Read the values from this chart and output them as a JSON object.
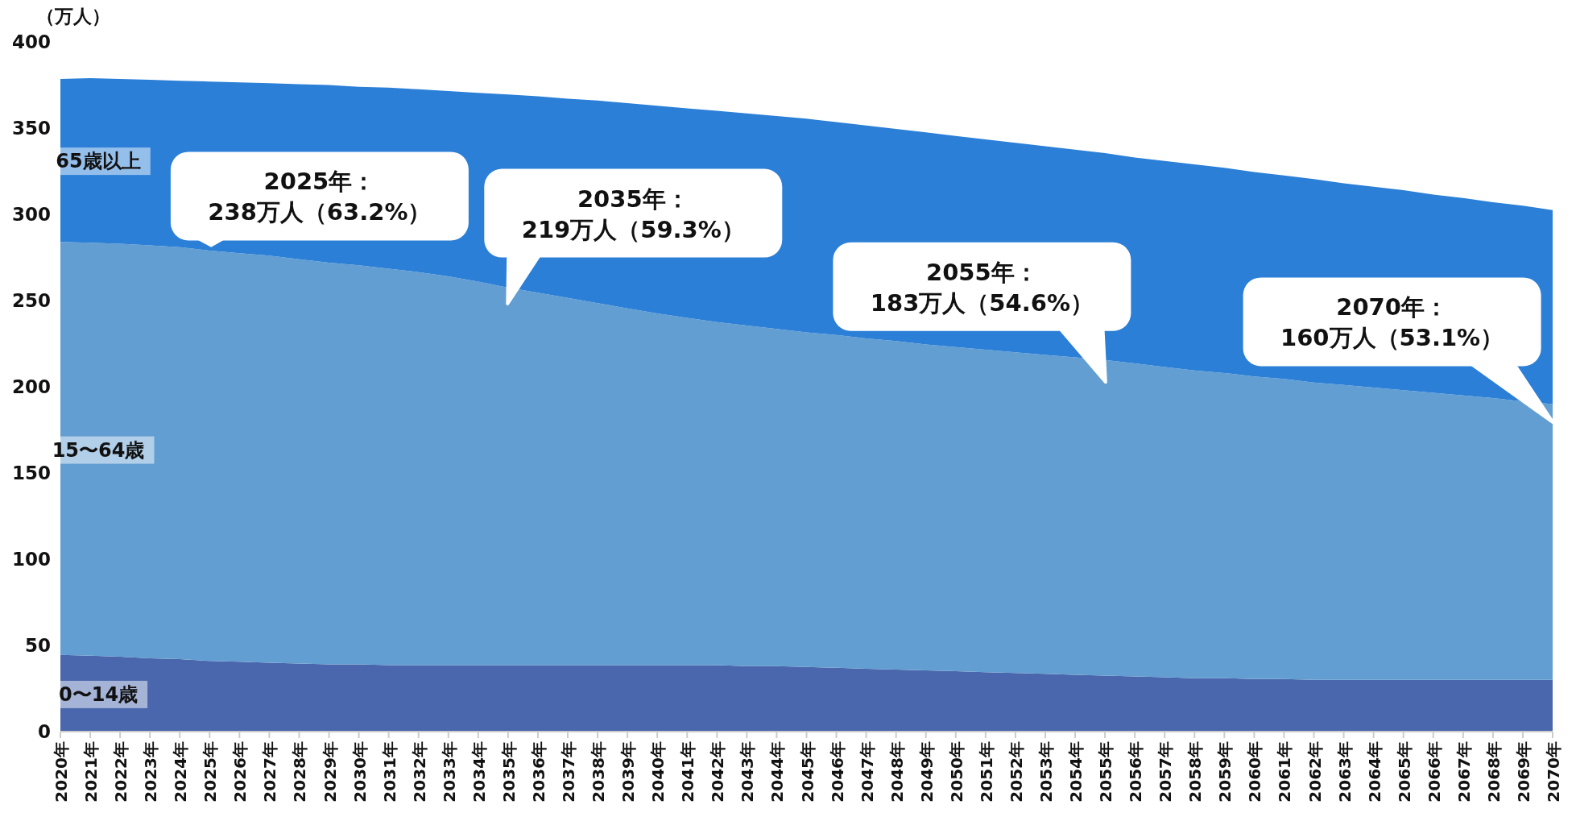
{
  "chart_data": {
    "type": "area",
    "stacked": true,
    "ylabel": "（万人）",
    "ylim": [
      0,
      400
    ],
    "yticks": [
      0,
      50,
      100,
      150,
      200,
      250,
      300,
      350,
      400
    ],
    "categories": [
      "2020年",
      "2021年",
      "2022年",
      "2023年",
      "2024年",
      "2025年",
      "2026年",
      "2027年",
      "2028年",
      "2029年",
      "2030年",
      "2031年",
      "2032年",
      "2033年",
      "2034年",
      "2035年",
      "2036年",
      "2037年",
      "2038年",
      "2039年",
      "2040年",
      "2041年",
      "2042年",
      "2043年",
      "2044年",
      "2045年",
      "2046年",
      "2047年",
      "2048年",
      "2049年",
      "2050年",
      "2051年",
      "2052年",
      "2053年",
      "2054年",
      "2055年",
      "2056年",
      "2057年",
      "2058年",
      "2059年",
      "2060年",
      "2061年",
      "2062年",
      "2063年",
      "2064年",
      "2065年",
      "2066年",
      "2067年",
      "2068年",
      "2069年",
      "2070年"
    ],
    "series": [
      {
        "name": "0〜14歳",
        "color": "#4a66ad",
        "values": [
          44.5,
          44,
          43.5,
          42.5,
          42,
          41,
          40.5,
          40,
          39.5,
          39,
          39,
          38.5,
          38.5,
          38.5,
          38.5,
          38.5,
          38.5,
          38.5,
          38.5,
          38.5,
          38.5,
          38.5,
          38.5,
          38,
          38,
          37.5,
          37,
          36.5,
          36,
          35.5,
          35,
          34.5,
          34,
          33.5,
          33,
          32.5,
          32,
          31.5,
          31,
          31,
          30.5,
          30.5,
          30,
          30,
          30,
          30,
          30,
          30,
          30,
          30,
          30
        ]
      },
      {
        "name": "15〜64歳",
        "color": "#629ed1",
        "values": [
          239.5,
          239.5,
          239.5,
          239.5,
          239,
          238,
          237,
          236,
          234.5,
          233,
          231.5,
          230,
          228,
          225.5,
          222.5,
          219,
          216,
          213,
          210,
          207,
          204,
          201.5,
          199,
          197.5,
          195.5,
          194,
          193,
          191.5,
          190.5,
          189,
          188,
          187,
          186,
          185,
          184,
          183,
          181.5,
          180,
          178.5,
          177,
          175.5,
          174,
          172.5,
          171,
          169.5,
          168,
          166.5,
          165,
          163.5,
          161.5,
          160
        ]
      },
      {
        "name": "65歳以上",
        "color": "#2b7fd6",
        "values": [
          94.5,
          95.5,
          95.5,
          96,
          96.5,
          98,
          99,
          100,
          101.5,
          103,
          103.5,
          105,
          106,
          107.5,
          109.5,
          112,
          114,
          115.5,
          117.5,
          119,
          120.5,
          121.5,
          122.5,
          123,
          123.5,
          124,
          123.5,
          123.5,
          123,
          123,
          122.5,
          122,
          121.5,
          121,
          120.5,
          120,
          119.5,
          119.5,
          119.5,
          119,
          118.5,
          118,
          118,
          117,
          116.5,
          116,
          115,
          114.5,
          113.5,
          113.5,
          112.5
        ]
      }
    ],
    "annotations": [
      "2025年：\n238万人（63.2%）",
      "2035年：\n219万人（59.3%）",
      "2055年：\n183万人（54.6%）",
      "2070年：\n160万人（53.1%）"
    ]
  }
}
